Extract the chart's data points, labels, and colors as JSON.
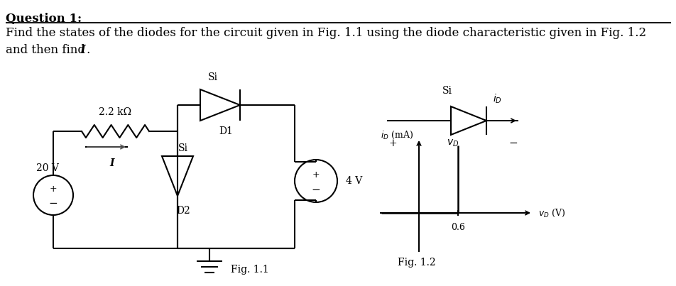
{
  "title_line1": "Question 1:",
  "body_line1": "Find the states of the diodes for the circuit given in Fig. 1.1 using the diode characteristic given in Fig. 1.2",
  "body_line2": "and then find ",
  "body_line2_italic": "I",
  "fig11_label": "Fig. 1.1",
  "fig12_label": "Fig. 1.2",
  "label_20V": "20 V",
  "label_4V": "4 V",
  "label_2k2": "2.2 kΩ",
  "label_I": "I",
  "label_D1": "D1",
  "label_D2": "D2",
  "label_Si1": "Si",
  "label_Si2": "Si",
  "label_Si3": "Si",
  "label_plus1": "+",
  "label_minus1": "-",
  "label_plus2": "+",
  "label_minus2": "-",
  "label_06": "0.6",
  "bg_color": "#ffffff",
  "line_color": "#000000",
  "title_fontsize": 12,
  "body_fontsize": 12,
  "small_fontsize": 10
}
